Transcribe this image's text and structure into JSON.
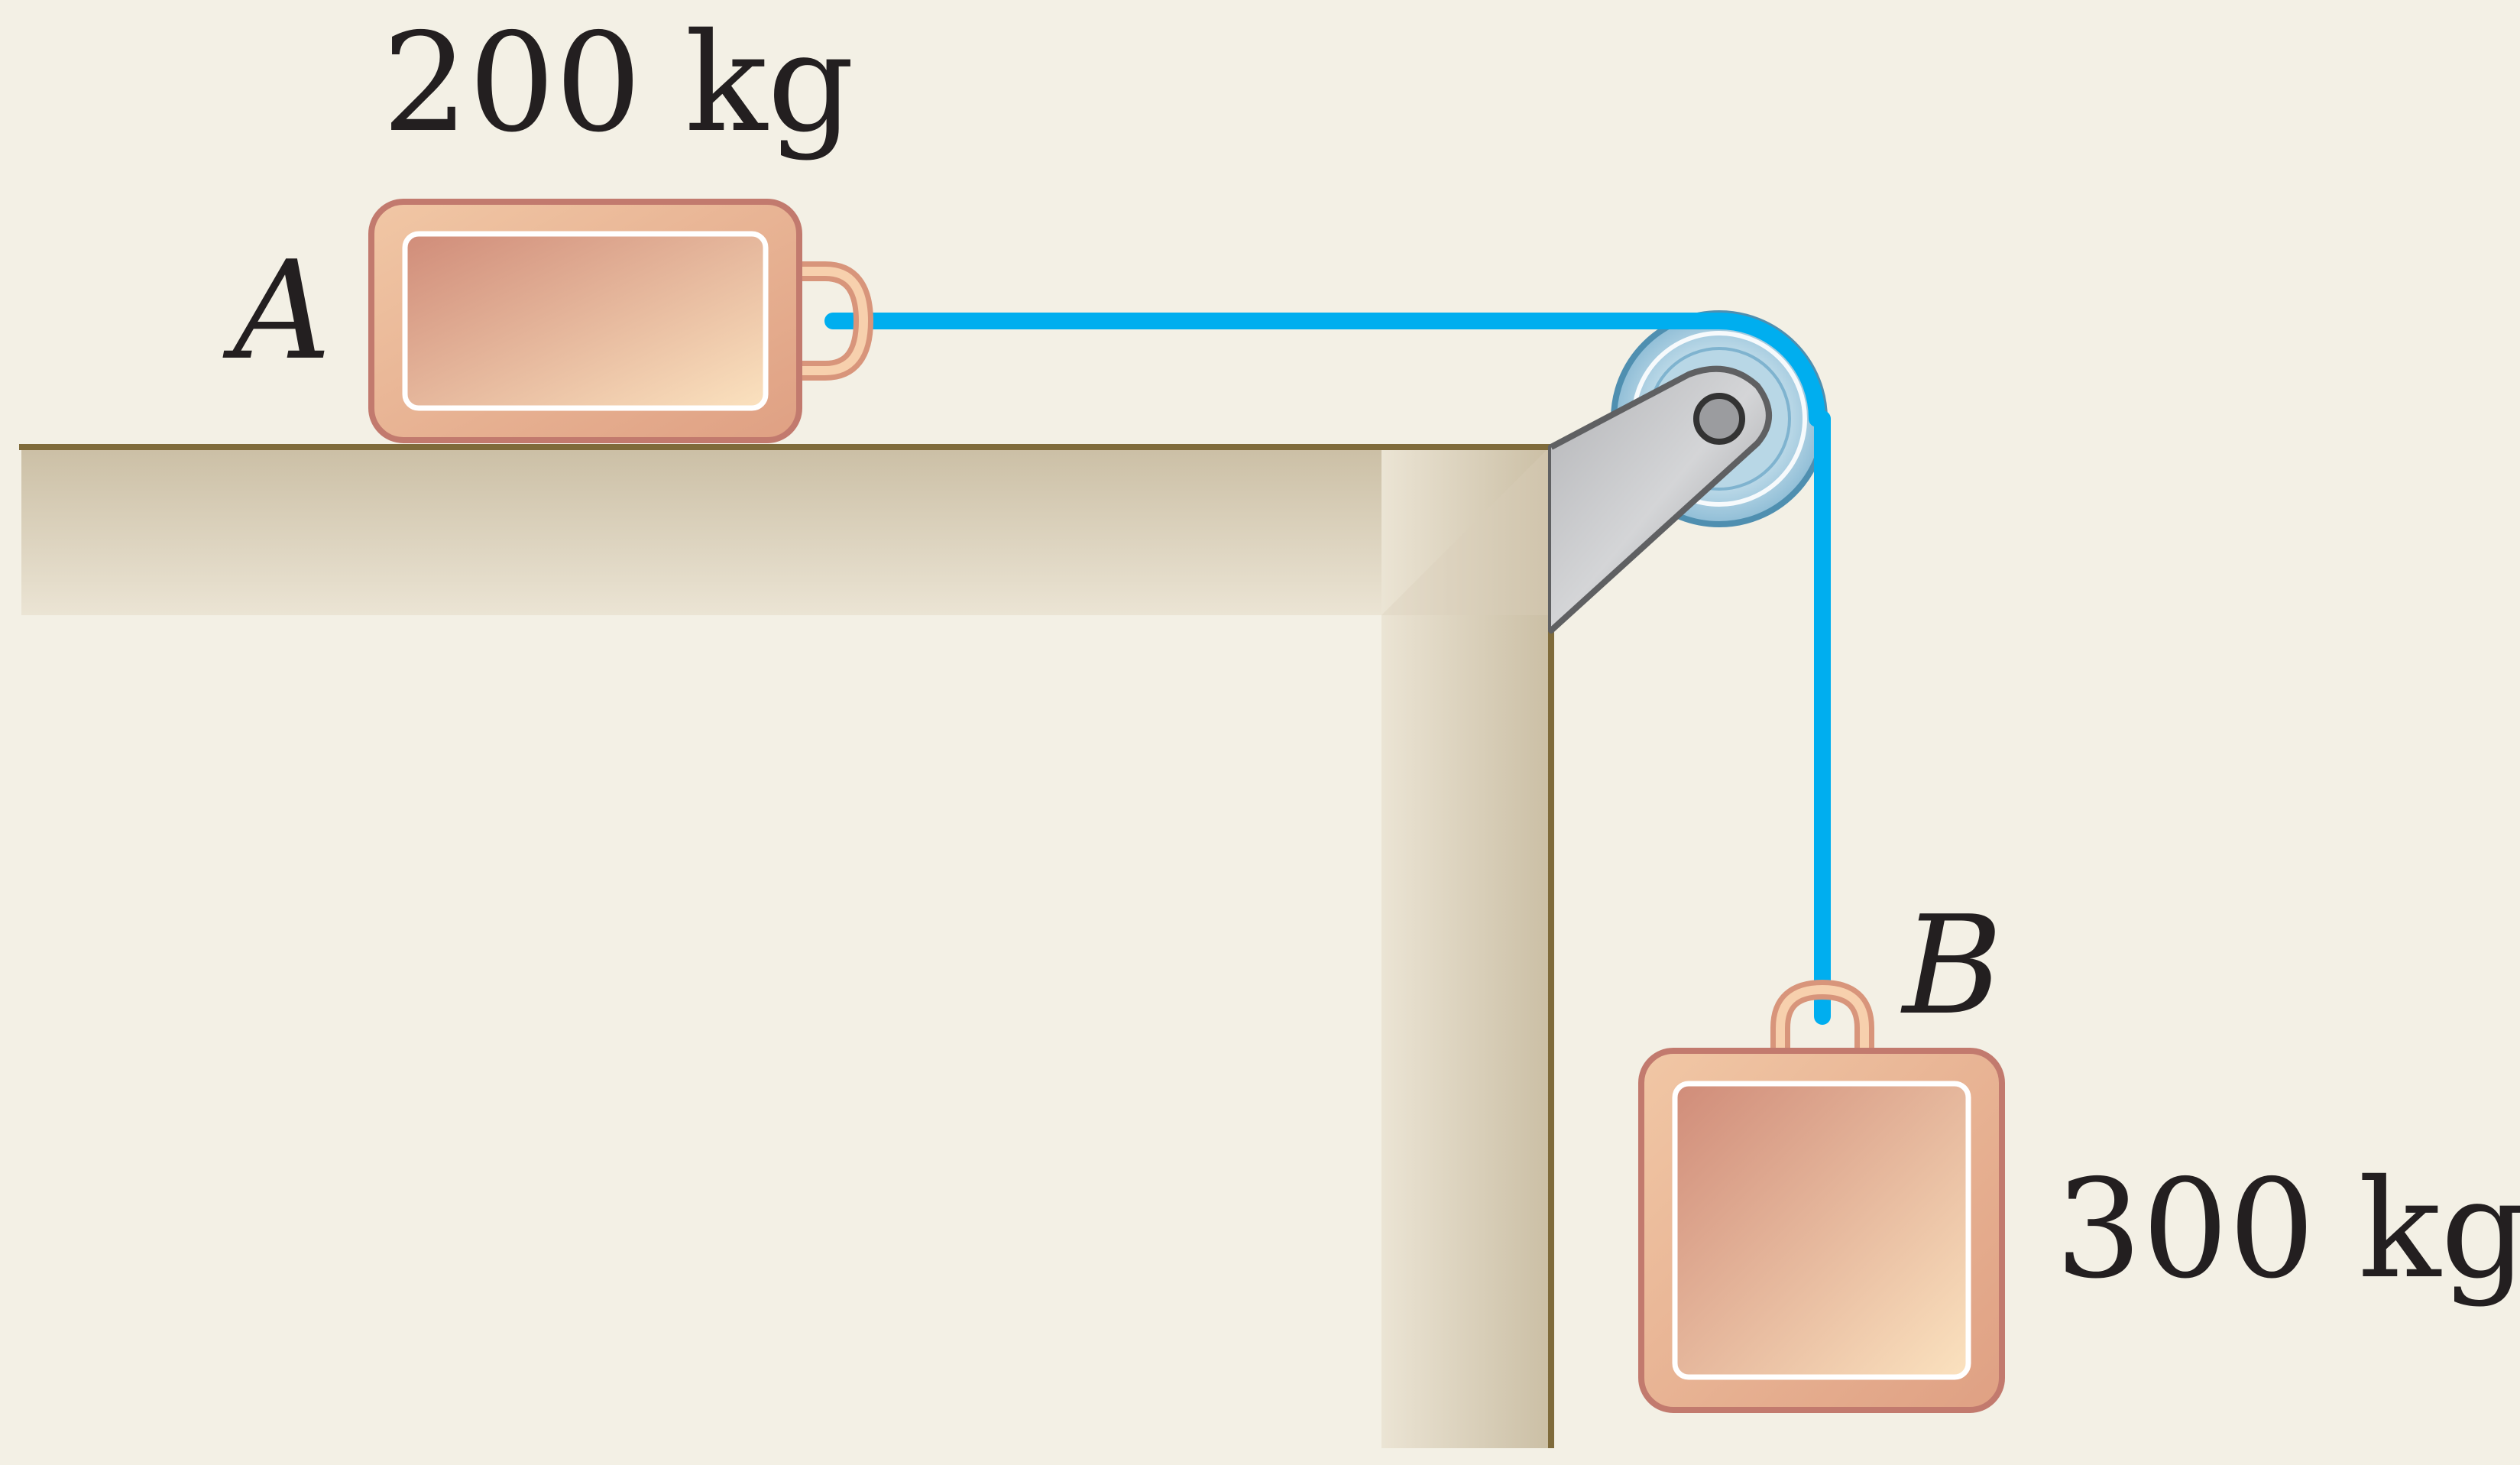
{
  "diagram": {
    "block_a": {
      "letter": "A",
      "mass_label": "200 kg"
    },
    "block_b": {
      "letter": "B",
      "mass_label": "300 kg"
    },
    "colors": {
      "background": "#f3f0e5",
      "rope": "#00aeef",
      "table_edge": "#7f6b3b",
      "block_border": "#c27a6e",
      "block_fill_light": "#fbe2bf",
      "block_fill_dark": "#d08c79",
      "pulley": "#a9cde0",
      "bracket": "#8f9093"
    }
  }
}
